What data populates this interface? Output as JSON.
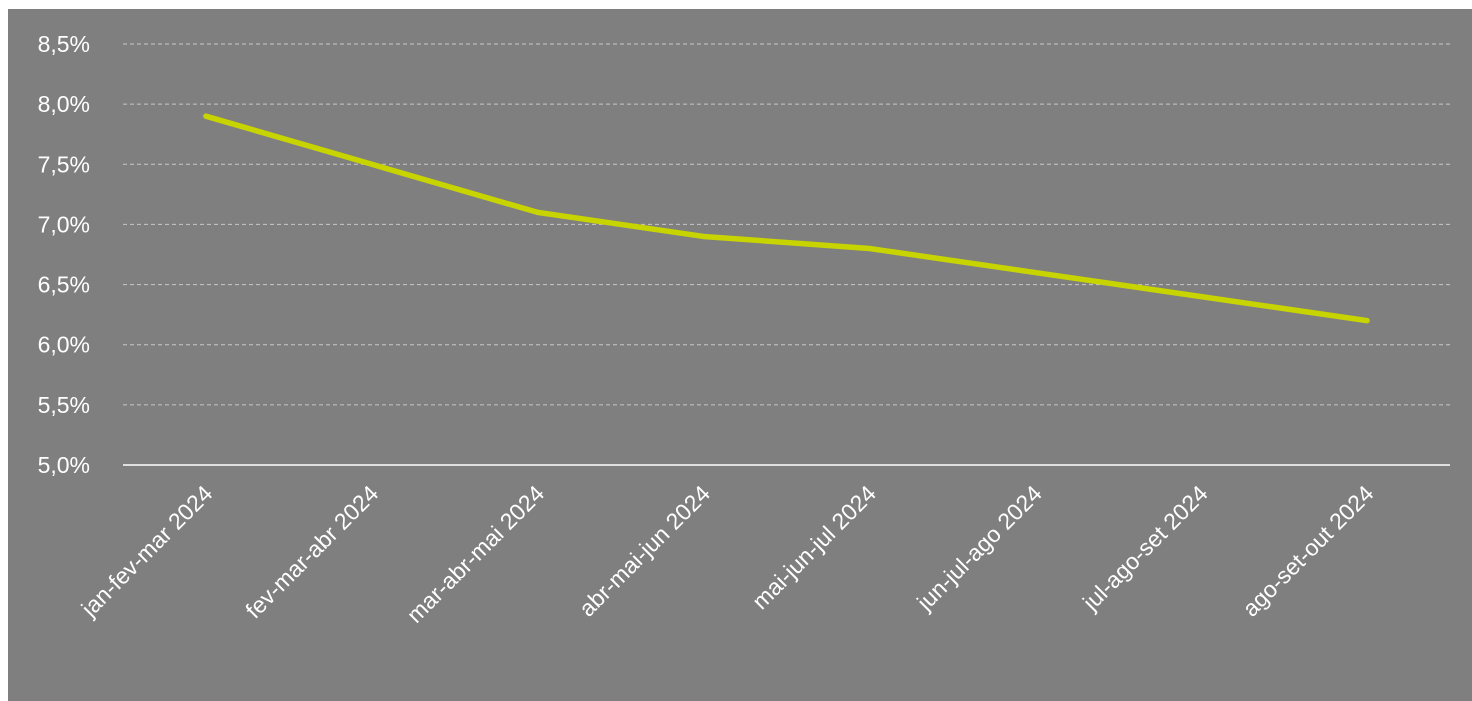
{
  "chart_data": {
    "type": "line",
    "title": "",
    "xlabel": "",
    "ylabel": "",
    "categories": [
      "jan-fev-mar 2024",
      "fev-mar-abr 2024",
      "mar-abr-mai 2024",
      "abr-mai-jun 2024",
      "mai-jun-jul 2024",
      "jun-jul-ago 2024",
      "jul-ago-set 2024",
      "ago-set-out 2024"
    ],
    "series": [
      {
        "values": [
          7.9,
          7.5,
          7.1,
          6.9,
          6.8,
          6.6,
          6.4,
          6.2
        ],
        "color": "#c8d400"
      }
    ],
    "ylim": [
      5.0,
      8.5
    ],
    "yticks": [
      "5,0%",
      "5,5%",
      "6,0%",
      "6,5%",
      "7,0%",
      "7,5%",
      "8,0%",
      "8,5%"
    ],
    "grid": true,
    "legend": "none",
    "colors": {
      "background": "#7f7f7f",
      "text": "#ffffff",
      "gridline": "#c8c8c8",
      "axis": "#ffffff"
    }
  }
}
